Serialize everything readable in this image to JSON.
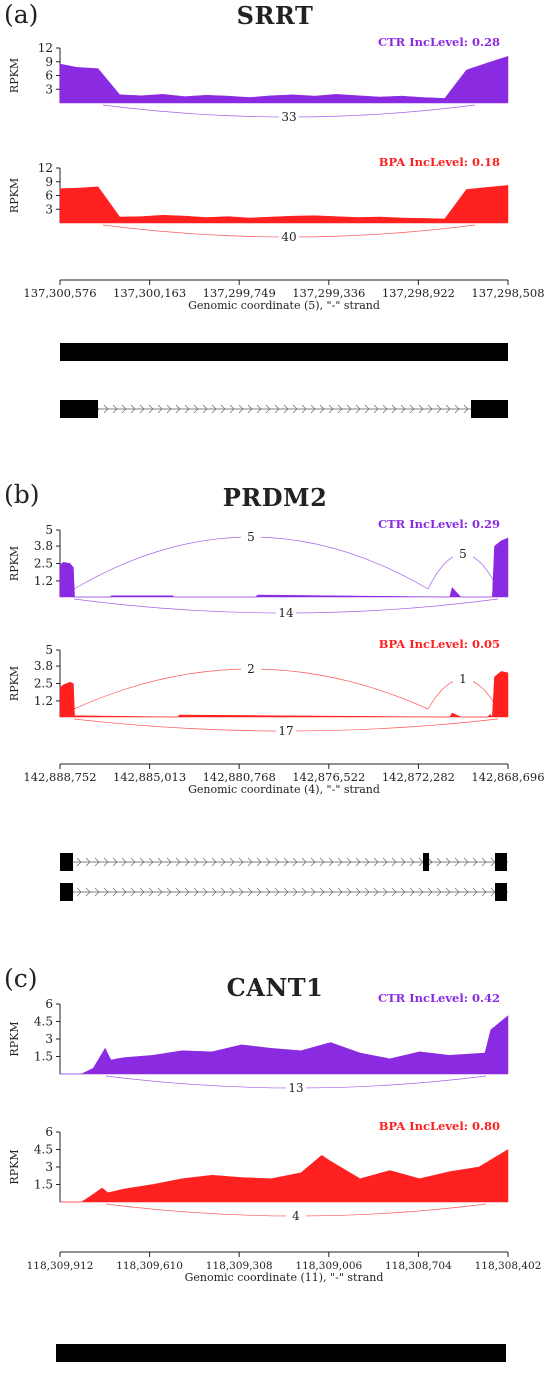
{
  "chart_data": [
    {
      "type": "area",
      "panel_label": "(a)",
      "gene": "SRRT",
      "xlabel": "Genomic coordinate (5), \"-\" strand",
      "x_ticks": [
        "137,300,576",
        "137,300,163",
        "137,299,749",
        "137,299,336",
        "137,298,922",
        "137,298,508"
      ],
      "xlim": [
        137300576,
        137298508
      ],
      "ylabel": "RPKM",
      "ylim": [
        0,
        12
      ],
      "y_ticks": [
        "3",
        "6",
        "9",
        "12"
      ],
      "series": [
        {
          "name": "CTR",
          "incl_label": "CTR IncLevel: 0.28",
          "color": "#8a2be2",
          "x": [
            137300576,
            137300500,
            137300400,
            137300300,
            137300200,
            137300100,
            137300000,
            137299900,
            137299800,
            137299700,
            137299600,
            137299500,
            137299400,
            137299300,
            137299200,
            137299100,
            137299000,
            137298900,
            137298800,
            137298700,
            137298600,
            137298508
          ],
          "values": [
            8.5,
            7.8,
            7.5,
            1.8,
            1.6,
            1.9,
            1.4,
            1.7,
            1.5,
            1.2,
            1.6,
            1.8,
            1.5,
            1.9,
            1.6,
            1.3,
            1.5,
            1.2,
            1.0,
            7.2,
            8.8,
            10.2
          ],
          "junctions": [
            {
              "label": "33"
            }
          ]
        },
        {
          "name": "BPA",
          "incl_label": "BPA IncLevel: 0.18",
          "color": "#ff2020",
          "x": [
            137300576,
            137300500,
            137300400,
            137300300,
            137300200,
            137300100,
            137300000,
            137299900,
            137299800,
            137299700,
            137299600,
            137299500,
            137299400,
            137299300,
            137299200,
            137299100,
            137299000,
            137298900,
            137298800,
            137298700,
            137298600,
            137298508
          ],
          "values": [
            7.5,
            7.6,
            7.9,
            1.3,
            1.4,
            1.7,
            1.5,
            1.2,
            1.4,
            1.1,
            1.3,
            1.5,
            1.6,
            1.4,
            1.2,
            1.3,
            1.1,
            1.0,
            0.9,
            7.3,
            7.8,
            8.2
          ],
          "junctions": [
            {
              "label": "40"
            }
          ]
        }
      ]
    },
    {
      "type": "area",
      "panel_label": "(b)",
      "gene": "PRDM2",
      "xlabel": "Genomic coordinate (4), \"-\" strand",
      "x_ticks": [
        "142,888,752",
        "142,885,013",
        "142,880,768",
        "142,876,522",
        "142,872,282",
        "142,868,696"
      ],
      "xlim": [
        142888752,
        142868696
      ],
      "ylabel": "RPKM",
      "ylim": [
        0,
        5
      ],
      "y_ticks": [
        "1.2",
        "2.5",
        "3.8",
        "5"
      ],
      "series": [
        {
          "name": "CTR",
          "incl_label": "CTR IncLevel: 0.29",
          "color": "#8a2be2",
          "x": [
            142888752,
            142888600,
            142888300,
            142888150,
            142888100,
            142886500,
            142886450,
            142883700,
            142883650,
            142880000,
            142879900,
            142871300,
            142871200,
            142870800,
            142869400,
            142869300,
            142869000,
            142868696
          ],
          "values": [
            2.4,
            2.6,
            2.5,
            2.2,
            0,
            0,
            0.1,
            0.1,
            0,
            0,
            0.15,
            0,
            0.7,
            0,
            0,
            3.8,
            4.2,
            4.4
          ],
          "junctions": [
            {
              "label": "5"
            },
            {
              "label": "5"
            },
            {
              "label": "14"
            }
          ]
        },
        {
          "name": "BPA",
          "incl_label": "BPA IncLevel: 0.05",
          "color": "#ff2020",
          "x": [
            142888752,
            142888600,
            142888300,
            142888150,
            142888100,
            142883500,
            142883400,
            142871300,
            142871200,
            142870800,
            142869600,
            142869500,
            142869400,
            142869300,
            142869000,
            142868696
          ],
          "values": [
            2.2,
            2.4,
            2.6,
            2.5,
            0.1,
            0,
            0.15,
            0,
            0.3,
            0,
            0,
            0.2,
            0,
            3.0,
            3.4,
            3.3
          ],
          "junctions": [
            {
              "label": "2"
            },
            {
              "label": "1"
            },
            {
              "label": "17"
            }
          ]
        }
      ]
    },
    {
      "type": "area",
      "panel_label": "(c)",
      "gene": "CANT1",
      "xlabel": "Genomic coordinate (11), \"-\" strand",
      "x_ticks": [
        "118,309,912",
        "118,309,610",
        "118,309,308",
        "118,309,006",
        "118,308,704",
        "118,308,402"
      ],
      "xlim": [
        118309912,
        118308402
      ],
      "ylabel": "RPKM",
      "ylim": [
        0,
        6
      ],
      "y_ticks": [
        "1.5",
        "3",
        "4.5",
        "6"
      ],
      "series": [
        {
          "name": "CTR",
          "incl_label": "CTR IncLevel: 0.42",
          "color": "#8a2be2",
          "x": [
            118309912,
            118309840,
            118309800,
            118309760,
            118309740,
            118309700,
            118309600,
            118309500,
            118309400,
            118309300,
            118309200,
            118309100,
            118309000,
            118308900,
            118308800,
            118308700,
            118308600,
            118308480,
            118308460,
            118308402
          ],
          "values": [
            0,
            0,
            0.5,
            2.2,
            1.2,
            1.4,
            1.6,
            2.0,
            1.9,
            2.5,
            2.2,
            2.0,
            2.7,
            1.8,
            1.3,
            1.9,
            1.6,
            1.8,
            3.8,
            5.0
          ],
          "junctions": [
            {
              "label": "13"
            }
          ]
        },
        {
          "name": "BPA",
          "incl_label": "BPA IncLevel: 0.80",
          "color": "#ff2020",
          "x": [
            118309912,
            118309840,
            118309810,
            118309770,
            118309750,
            118309700,
            118309600,
            118309500,
            118309400,
            118309300,
            118309200,
            118309100,
            118309030,
            118309000,
            118308900,
            118308800,
            118308700,
            118308600,
            118308500,
            118308402
          ],
          "values": [
            0,
            0,
            0.5,
            1.2,
            0.8,
            1.1,
            1.5,
            2.0,
            2.3,
            2.1,
            2.0,
            2.5,
            4.0,
            3.5,
            2.0,
            2.7,
            2.0,
            2.6,
            3.0,
            4.5
          ],
          "junctions": [
            {
              "label": "4"
            }
          ]
        }
      ]
    }
  ]
}
